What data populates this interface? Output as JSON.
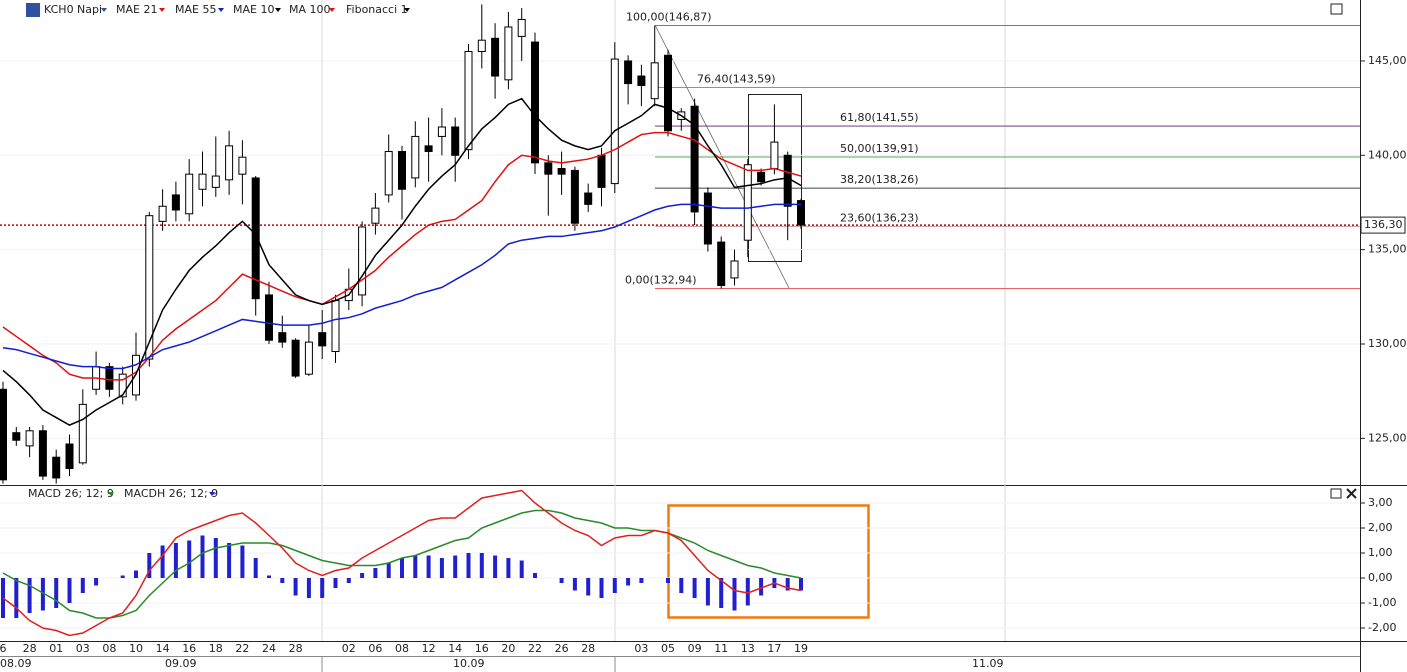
{
  "chart_data": [
    {
      "type": "candlestick",
      "title": "KCH0 Napi",
      "categories": [
        "6",
        null,
        "28",
        null,
        "01",
        null,
        "03",
        null,
        "08",
        null,
        "10",
        null,
        "14",
        null,
        "16",
        null,
        "18",
        null,
        "22",
        null,
        "24",
        null,
        "28",
        null,
        null,
        null,
        "02",
        null,
        "06",
        null,
        "08",
        null,
        "12",
        null,
        "14",
        null,
        "16",
        null,
        "20",
        null,
        "22",
        null,
        "26",
        null,
        "28",
        null,
        null,
        null,
        "03",
        null,
        "05",
        null,
        "09",
        null,
        "11",
        null,
        "13",
        null,
        "17",
        null,
        "19"
      ],
      "x_groups": [
        "08.09",
        "09.09",
        "10.09",
        "11.09"
      ],
      "open": [
        127.6,
        125.3,
        124.6,
        125.4,
        124.0,
        124.7,
        123.7,
        127.6,
        128.8,
        127.2,
        127.3,
        129.2,
        136.5,
        137.9,
        136.9,
        138.2,
        138.3,
        138.7,
        139.0,
        138.8,
        132.6,
        130.6,
        130.2,
        128.4,
        130.6,
        129.6,
        132.3,
        132.6,
        136.4,
        137.9,
        140.2,
        138.8,
        140.5,
        141.0,
        141.5,
        140.3,
        145.5,
        146.2,
        144.0,
        146.3,
        146.0,
        139.6,
        139.3,
        139.2,
        138.0,
        140.0,
        138.5,
        145.0,
        144.2,
        143.0,
        145.3,
        141.9,
        142.6,
        138.0,
        135.4,
        133.5,
        135.5,
        139.1,
        139.3,
        140.0,
        137.6
      ],
      "high": [
        128.0,
        125.6,
        125.6,
        125.7,
        124.4,
        125.2,
        127.6,
        129.6,
        129.0,
        128.8,
        130.6,
        137.0,
        138.2,
        138.6,
        139.8,
        140.2,
        141.0,
        141.3,
        140.8,
        138.9,
        133.3,
        131.5,
        130.3,
        131.0,
        131.8,
        132.6,
        134.0,
        136.5,
        138.0,
        141.1,
        140.5,
        141.8,
        142.0,
        142.5,
        142.0,
        145.9,
        148.0,
        147.0,
        147.6,
        147.8,
        146.5,
        140.0,
        140.2,
        139.4,
        138.5,
        140.4,
        146.0,
        145.3,
        144.8,
        146.87,
        145.6,
        142.5,
        143.0,
        138.3,
        135.7,
        135.0,
        139.8,
        139.3,
        142.7,
        140.2,
        137.7
      ],
      "low": [
        122.6,
        124.6,
        124.0,
        122.8,
        122.6,
        123.0,
        123.6,
        127.3,
        127.2,
        126.8,
        127.0,
        128.8,
        136.0,
        136.5,
        136.5,
        137.3,
        137.8,
        137.9,
        137.4,
        131.5,
        130.0,
        129.8,
        128.2,
        128.3,
        129.2,
        129.0,
        131.8,
        132.0,
        135.8,
        137.5,
        136.6,
        138.3,
        138.6,
        140.0,
        138.6,
        139.8,
        144.6,
        143.0,
        143.5,
        145.0,
        139.0,
        136.8,
        137.9,
        136.0,
        137.0,
        137.3,
        138.0,
        142.7,
        142.6,
        142.6,
        141.0,
        141.3,
        136.3,
        134.9,
        132.94,
        133.1,
        134.6,
        138.4,
        139.0,
        135.5,
        136.1
      ],
      "close": [
        122.8,
        124.9,
        125.4,
        123.0,
        122.9,
        123.4,
        126.8,
        128.8,
        127.6,
        128.4,
        129.4,
        136.8,
        137.3,
        137.1,
        139.0,
        139.0,
        138.9,
        140.5,
        139.9,
        132.4,
        130.2,
        130.1,
        128.3,
        130.1,
        129.9,
        132.3,
        132.9,
        136.2,
        137.2,
        140.2,
        138.2,
        141.0,
        140.2,
        141.5,
        140.0,
        145.5,
        146.1,
        144.2,
        146.8,
        147.2,
        139.6,
        139.0,
        139.0,
        136.4,
        137.4,
        138.3,
        145.1,
        143.8,
        143.7,
        144.9,
        141.3,
        142.3,
        137.0,
        135.3,
        133.1,
        134.4,
        139.5,
        138.6,
        140.7,
        137.3,
        136.3
      ],
      "series": [
        {
          "name": "MAE 21",
          "color": "#e01010",
          "values": [
            130.9,
            130.4,
            129.9,
            129.4,
            129.0,
            128.4,
            128.2,
            128.2,
            128.1,
            128.1,
            128.5,
            129.3,
            130.2,
            130.8,
            131.3,
            131.8,
            132.3,
            133.0,
            133.7,
            133.4,
            133.1,
            132.8,
            132.5,
            132.3,
            132.1,
            132.5,
            132.9,
            133.4,
            133.9,
            134.6,
            135.2,
            135.8,
            136.3,
            136.5,
            136.6,
            137.1,
            137.6,
            138.6,
            139.5,
            140.0,
            139.9,
            139.7,
            139.6,
            139.7,
            139.8,
            140.0,
            140.3,
            140.7,
            141.1,
            141.2,
            141.2,
            141.0,
            140.8,
            140.3,
            139.8,
            139.5,
            139.2,
            139.2,
            139.3,
            139.1,
            138.9
          ]
        },
        {
          "name": "MAE 55",
          "color": "#1020d0",
          "values": [
            129.8,
            129.7,
            129.5,
            129.3,
            129.1,
            128.9,
            128.8,
            128.8,
            128.7,
            128.7,
            128.9,
            129.3,
            129.7,
            129.9,
            130.1,
            130.4,
            130.7,
            131.0,
            131.3,
            131.2,
            131.1,
            131.0,
            131.0,
            131.0,
            131.1,
            131.3,
            131.4,
            131.6,
            131.9,
            132.1,
            132.3,
            132.6,
            132.8,
            133.0,
            133.4,
            133.8,
            134.2,
            134.7,
            135.3,
            135.5,
            135.6,
            135.7,
            135.7,
            135.8,
            135.9,
            136.0,
            136.2,
            136.5,
            136.8,
            137.1,
            137.3,
            137.4,
            137.4,
            137.3,
            137.2,
            137.2,
            137.2,
            137.3,
            137.4,
            137.4,
            137.4
          ]
        },
        {
          "name": "MAE 10",
          "color": "#000000",
          "values": [
            128.6,
            128.0,
            127.3,
            126.5,
            126.1,
            125.7,
            126.0,
            126.5,
            126.9,
            127.3,
            128.4,
            130.1,
            131.8,
            132.9,
            133.9,
            134.6,
            135.2,
            135.9,
            136.5,
            135.8,
            134.2,
            133.4,
            132.6,
            132.3,
            132.1,
            132.3,
            132.6,
            133.6,
            134.7,
            135.5,
            136.3,
            137.3,
            138.2,
            138.9,
            139.5,
            140.5,
            141.4,
            142.0,
            142.7,
            143.0,
            142.1,
            141.4,
            140.8,
            140.5,
            140.3,
            140.5,
            141.3,
            141.7,
            142.1,
            142.7,
            142.5,
            142.1,
            141.6,
            140.5,
            139.5,
            138.3,
            138.4,
            138.5,
            138.7,
            138.8,
            138.4
          ]
        }
      ],
      "other_indicators": [
        {
          "name": "MA 100",
          "color": "#e01010"
        },
        {
          "name": "Fibonacci 1",
          "color": "#000000"
        }
      ],
      "fibonacci": [
        {
          "label": "100,00(146,87)",
          "value": 146.87,
          "color": "#3a3ad0"
        },
        {
          "label": "76,40(143,59)",
          "value": 143.59,
          "color": "#e040e0"
        },
        {
          "label": "61,80(141,55)",
          "value": 141.55,
          "color": "#6a1a6a"
        },
        {
          "label": "50,00(139,91)",
          "value": 139.91,
          "color": "#1a8a1a"
        },
        {
          "label": "38,20(138,26)",
          "value": 138.26,
          "color": "#000000"
        },
        {
          "label": "23,60(136,23)",
          "value": 136.23,
          "color": "#c09a9a"
        },
        {
          "label": "0,00(132,94)",
          "value": 132.94,
          "color": "#e03030"
        }
      ],
      "last": {
        "value": 136.3,
        "label": "136,30",
        "color": "#c00000"
      },
      "ylim": [
        122.58,
        148.23
      ],
      "yticks": [
        {
          "value": 125,
          "label": "125,00"
        },
        {
          "value": 130,
          "label": "130,00"
        },
        {
          "value": 135,
          "label": "135,00"
        },
        {
          "value": 140,
          "label": "140,00"
        },
        {
          "value": 145,
          "label": "145,00"
        }
      ]
    },
    {
      "type": "macd",
      "series": [
        {
          "name": "MACD 26; 12; 9",
          "color": "#2a8a2a",
          "values": [
            0.2,
            -0.1,
            -0.3,
            -0.6,
            -0.9,
            -1.3,
            -1.4,
            -1.6,
            -1.6,
            -1.5,
            -1.3,
            -0.7,
            -0.2,
            0.3,
            0.6,
            1.0,
            1.2,
            1.3,
            1.4,
            1.4,
            1.4,
            1.3,
            1.1,
            0.9,
            0.7,
            0.6,
            0.5,
            0.5,
            0.5,
            0.6,
            0.8,
            0.9,
            1.1,
            1.3,
            1.5,
            1.6,
            2.0,
            2.2,
            2.4,
            2.6,
            2.7,
            2.7,
            2.6,
            2.4,
            2.3,
            2.2,
            2.0,
            2.0,
            1.9,
            1.9,
            1.8,
            1.6,
            1.4,
            1.1,
            0.9,
            0.7,
            0.5,
            0.4,
            0.2,
            0.1,
            0.0
          ]
        },
        {
          "color": "#e02020",
          "values": [
            -0.8,
            -1.2,
            -1.7,
            -2.0,
            -2.1,
            -2.3,
            -2.2,
            -1.9,
            -1.6,
            -1.4,
            -0.7,
            0.3,
            0.9,
            1.6,
            1.9,
            2.1,
            2.3,
            2.5,
            2.6,
            2.2,
            1.7,
            1.2,
            0.6,
            0.3,
            0.1,
            0.3,
            0.4,
            0.8,
            1.1,
            1.4,
            1.7,
            2.0,
            2.3,
            2.4,
            2.4,
            2.8,
            3.2,
            3.3,
            3.4,
            3.5,
            3.0,
            2.6,
            2.2,
            1.9,
            1.7,
            1.3,
            1.6,
            1.7,
            1.7,
            1.9,
            1.8,
            1.5,
            0.9,
            0.3,
            -0.1,
            -0.5,
            -0.6,
            -0.4,
            -0.2,
            -0.4,
            -0.5
          ]
        },
        {
          "name": "MACDH 26; 12; 9",
          "color": "#2020d0",
          "kind": "bar",
          "values": [
            -1.6,
            -1.6,
            -1.4,
            -1.3,
            -1.2,
            -1.0,
            -0.6,
            -0.3,
            0.0,
            0.1,
            0.3,
            1.0,
            1.3,
            1.4,
            1.5,
            1.7,
            1.6,
            1.4,
            1.3,
            0.8,
            0.1,
            -0.2,
            -0.7,
            -0.8,
            -0.8,
            -0.4,
            -0.2,
            0.2,
            0.4,
            0.6,
            0.8,
            0.9,
            0.9,
            0.8,
            0.9,
            1.0,
            1.0,
            0.9,
            0.8,
            0.7,
            0.2,
            0.0,
            -0.2,
            -0.5,
            -0.7,
            -0.8,
            -0.6,
            -0.3,
            -0.2,
            0.0,
            -0.2,
            -0.6,
            -0.8,
            -1.1,
            -1.2,
            -1.3,
            -1.1,
            -0.7,
            -0.4,
            -0.5,
            -0.5
          ]
        }
      ],
      "ylim": [
        -2.48,
        3.64
      ],
      "yticks": [
        {
          "value": -2,
          "label": "-2,00"
        },
        {
          "value": -1,
          "label": "-1,00"
        },
        {
          "value": 0,
          "label": "0,00"
        },
        {
          "value": 1,
          "label": "1,00"
        },
        {
          "value": 2,
          "label": "2,00"
        },
        {
          "value": 3,
          "label": "3,00"
        }
      ]
    }
  ]
}
